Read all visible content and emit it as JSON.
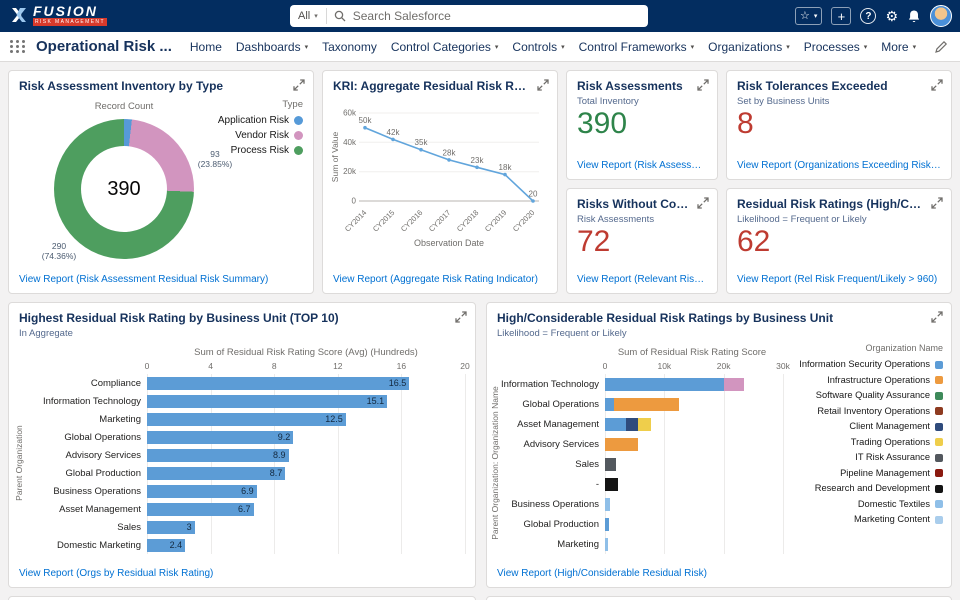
{
  "global_nav": {
    "logo": {
      "name": "FUSION",
      "sub": "RISK MANAGEMENT"
    },
    "search": {
      "scope": "All",
      "placeholder": "Search Salesforce"
    },
    "icons": {
      "help": "?",
      "star": "☆",
      "plus": "+",
      "gear": "⚙",
      "caret": "▾"
    }
  },
  "app_nav": {
    "app_name": "Operational Risk ...",
    "tabs": [
      {
        "label": "Home",
        "caret": false
      },
      {
        "label": "Dashboards",
        "caret": true
      },
      {
        "label": "Taxonomy",
        "caret": false
      },
      {
        "label": "Control Categories",
        "caret": true
      },
      {
        "label": "Controls",
        "caret": true
      },
      {
        "label": "Control Frameworks",
        "caret": true
      },
      {
        "label": "Organizations",
        "caret": true
      },
      {
        "label": "Processes",
        "caret": true
      },
      {
        "label": "More",
        "caret": true
      }
    ]
  },
  "cards": {
    "donut": {
      "title": "Risk Assessment Inventory by Type",
      "link": "View Report (Risk Assessment Residual Risk Summary)"
    },
    "kri": {
      "title": "KRI: Aggregate Residual Risk Rating",
      "link": "View Report (Aggregate Risk Rating Indicator)"
    },
    "metrics": [
      {
        "title": "Risk Assessments",
        "subtitle": "Total Inventory",
        "value": "390",
        "value_color": "#2E844A",
        "link": "View Report (Risk Assessment Re..."
      },
      {
        "title": "Risk Tolerances Exceeded",
        "subtitle": "Set by Business Units",
        "value": "8",
        "value_color": "#BE3B31",
        "link": "View Report (Organizations Exceeding Risk Tolerance)"
      },
      {
        "title": "Risks Without Controls",
        "subtitle": "Risk Assessments",
        "value": "72",
        "value_color": "#BE3B31",
        "link": "View Report (Relevant Risks with..."
      },
      {
        "title": "Residual Risk Ratings (High/Consider...",
        "subtitle": "Likelihood = Frequent or Likely",
        "value": "62",
        "value_color": "#BE3B31",
        "link": "View Report (Rel Risk Frequent/Likely > 960)"
      }
    ],
    "top10": {
      "title": "Highest Residual Risk Rating by Business Unit (TOP 10)",
      "subtitle": "In Aggregate",
      "link": "View Report (Orgs by Residual Risk Rating)"
    },
    "stacked": {
      "title": "High/Considerable Residual Risk Ratings by Business Unit",
      "subtitle": "Likelihood = Frequent or Likely",
      "link": "View Report (High/Considerable Residual Risk)"
    }
  },
  "chart_data": [
    {
      "id": "risk_inventory_donut",
      "type": "pie",
      "metric_label": "Record Count",
      "center_label": "390",
      "legend_title": "Type",
      "slices": [
        {
          "label": "Application Risk",
          "value": 7,
          "color": "#569AD8",
          "pct_label": "(1.79%)"
        },
        {
          "label": "Vendor Risk",
          "value": 93,
          "color": "#D295BF",
          "pct_label": "(23.85%)"
        },
        {
          "label": "Process Risk",
          "value": 290,
          "color": "#4E9E5F",
          "pct_label": "(74.36%)"
        }
      ]
    },
    {
      "id": "kri_line",
      "type": "line",
      "xlabel": "Observation Date",
      "ylabel": "Sum of Value",
      "x": [
        "CY2014",
        "CY2015",
        "CY2016",
        "CY2017",
        "CY2018",
        "CY2019",
        "CY2020"
      ],
      "values": [
        50000,
        42000,
        35000,
        28000,
        23000,
        18000,
        20
      ],
      "point_labels": [
        "50k",
        "42k",
        "35k",
        "28k",
        "23k",
        "18k",
        "20"
      ],
      "ylim": [
        0,
        60000
      ],
      "ytick_values": [
        0,
        20000,
        40000,
        60000
      ],
      "yticks": [
        "0",
        "20k",
        "40k",
        "60k"
      ],
      "color": "#61A5DC"
    },
    {
      "id": "top10_bar",
      "type": "bar",
      "title": "Sum of Residual Risk Rating Score (Avg) (Hundreds)",
      "ylabel": "Parent Organization",
      "categories": [
        "Compliance",
        "Information Technology",
        "Marketing",
        "Global Operations",
        "Advisory Services",
        "Global Production",
        "Business Operations",
        "Asset Management",
        "Sales",
        "Domestic Marketing"
      ],
      "values": [
        16.5,
        15.1,
        12.5,
        9.2,
        8.9,
        8.7,
        6.9,
        6.7,
        3,
        2.4
      ],
      "xlim": [
        0,
        20
      ],
      "xticks": [
        {
          "value": 0,
          "label": "0"
        },
        {
          "value": 4,
          "label": "4"
        },
        {
          "value": 8,
          "label": "8"
        },
        {
          "value": 12,
          "label": "12"
        },
        {
          "value": 16,
          "label": "16"
        },
        {
          "value": 20,
          "label": "20"
        }
      ],
      "color": "#5C9CD6"
    },
    {
      "id": "stacked_bar",
      "type": "bar",
      "stacked": true,
      "title": "Sum of Residual Risk Rating Score",
      "ylabel": "Parent Organization: Organization Name",
      "legend_title": "Organization Name",
      "xlim": [
        0,
        30000
      ],
      "xticks": [
        {
          "value": 0,
          "label": "0"
        },
        {
          "value": 10000,
          "label": "10k"
        },
        {
          "value": 20000,
          "label": "20k"
        },
        {
          "value": 30000,
          "label": "30k"
        }
      ],
      "bars": [
        {
          "label": "Information Technology",
          "segments": [
            {
              "color": "#5C9CD6",
              "value": 20000
            },
            {
              "color": "#D295BF",
              "value": 3500
            }
          ]
        },
        {
          "label": "Global Operations",
          "segments": [
            {
              "color": "#5C9CD6",
              "value": 1500
            },
            {
              "color": "#ED9A3F",
              "value": 11000
            }
          ]
        },
        {
          "label": "Asset Management",
          "segments": [
            {
              "color": "#5C9CD6",
              "value": 3500
            },
            {
              "color": "#2F4B7C",
              "value": 2000
            },
            {
              "color": "#EFCE4B",
              "value": 2300
            }
          ]
        },
        {
          "label": "Advisory Services",
          "segments": [
            {
              "color": "#ED9A3F",
              "value": 5500
            }
          ]
        },
        {
          "label": "Sales",
          "segments": [
            {
              "color": "#53585E",
              "value": 1800
            }
          ]
        },
        {
          "label": "-",
          "segments": [
            {
              "color": "#141414",
              "value": 2200
            }
          ]
        },
        {
          "label": "Business Operations",
          "segments": [
            {
              "color": "#8FBFE8",
              "value": 800
            }
          ]
        },
        {
          "label": "Global Production",
          "segments": [
            {
              "color": "#5C9CD6",
              "value": 600
            }
          ]
        },
        {
          "label": "Marketing",
          "segments": [
            {
              "color": "#8FBFE8",
              "value": 500
            }
          ]
        }
      ],
      "legend": [
        {
          "label": "Information Security Operations",
          "color": "#5C9CD6"
        },
        {
          "label": "Infrastructure Operations",
          "color": "#ED9A3F"
        },
        {
          "label": "Software Quality Assurance",
          "color": "#3E8A5A"
        },
        {
          "label": "Retail Inventory Operations",
          "color": "#8E3B20"
        },
        {
          "label": "Client Management",
          "color": "#2F4B7C"
        },
        {
          "label": "Trading Operations",
          "color": "#EFCE4B"
        },
        {
          "label": "IT Risk Assurance",
          "color": "#53585E"
        },
        {
          "label": "Pipeline Management",
          "color": "#8B1A10"
        },
        {
          "label": "Research and Development",
          "color": "#141414"
        },
        {
          "label": "Domestic Textiles",
          "color": "#8FBFE8"
        },
        {
          "label": "Marketing Content",
          "color": "#A9CDEC"
        }
      ]
    }
  ]
}
